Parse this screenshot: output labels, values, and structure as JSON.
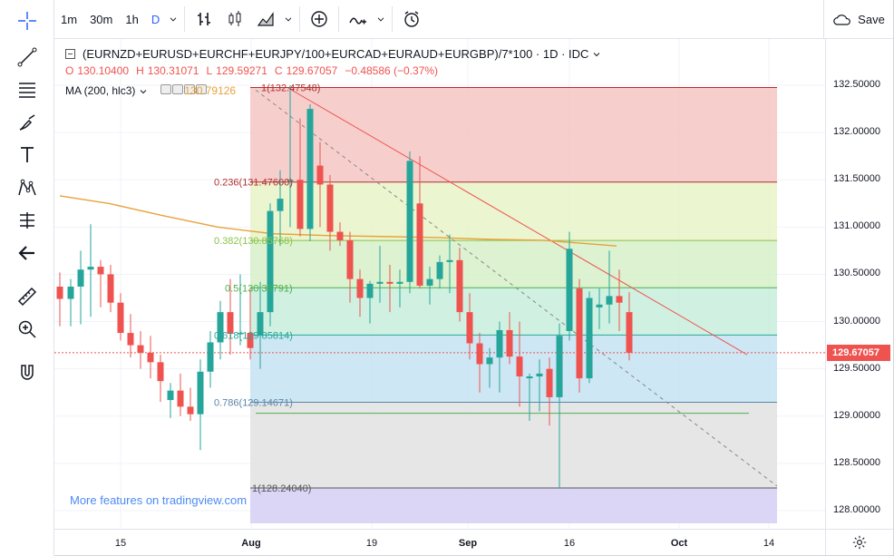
{
  "toolbar": {
    "intervals": [
      "1m",
      "30m",
      "1h",
      "D"
    ],
    "active_interval": "D",
    "save_label": "Save"
  },
  "legend": {
    "symbol": "(EURNZD+EURUSD+EURCHF+EURJPY/100+EURCAD+EURAUD+EURGBP)/7*100 · 1D · IDC",
    "open_label": "O",
    "open": "130.10400",
    "high_label": "H",
    "high": "130.31071",
    "low_label": "L",
    "low": "129.59271",
    "close_label": "C",
    "close": "129.67057",
    "change": "−0.48586 (−0.37%)",
    "ma_label": "MA (200, hlc3)",
    "ma_value": "130.79126"
  },
  "fib": {
    "levels": [
      {
        "label": "1(132.47548)",
        "price": 132.47548
      },
      {
        "label": "0.236(131.47600)",
        "price": 131.476
      },
      {
        "label": "0.382(130.85768)",
        "price": 130.85768
      },
      {
        "label": "0.5(130.35791)",
        "price": 130.35791
      },
      {
        "label": "0.618(129.85814)",
        "price": 129.85814
      },
      {
        "label": "0.786(129.14671)",
        "price": 129.14671
      },
      {
        "label": "1(128.24040)",
        "price": 128.2404
      }
    ],
    "colors": [
      "#f4c7c3",
      "#e8f3c8",
      "#d6f0c8",
      "#c8eedc",
      "#c5e3f2",
      "#e2e2e2",
      "#d5cff5"
    ]
  },
  "price_axis": {
    "ticks": [
      "132.50000",
      "132.00000",
      "131.50000",
      "131.00000",
      "130.50000",
      "130.00000",
      "129.50000",
      "129.00000",
      "128.50000",
      "128.00000"
    ],
    "last_price": "129.67057"
  },
  "time_axis": {
    "ticks": [
      "15",
      "Aug",
      "19",
      "Sep",
      "16",
      "Oct",
      "14"
    ]
  },
  "watermark": "More features on tradingview.com",
  "colors": {
    "up": "#26a69a",
    "down": "#ef5350",
    "ma": "#e8a23b",
    "accent": "#2962ff"
  }
}
